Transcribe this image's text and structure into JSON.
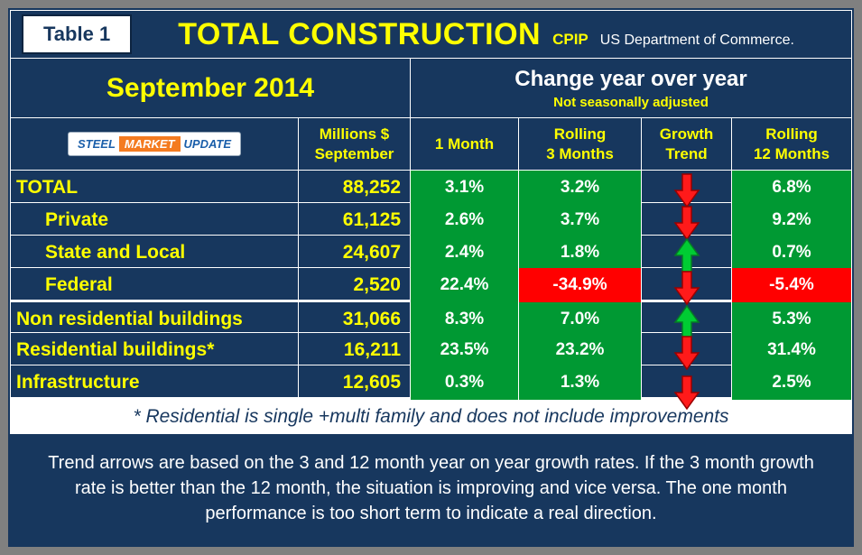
{
  "header": {
    "table_label": "Table 1",
    "title": "TOTAL CONSTRUCTION",
    "program": "CPIP",
    "source": "US Department of Commerce."
  },
  "period": {
    "month": "September 2014",
    "change_title": "Change year over year",
    "note": "Not seasonally adjusted"
  },
  "logo": {
    "steel": "STEEL",
    "market": "MARKET",
    "update": "UPDATE"
  },
  "columns": {
    "millions_line1": "Millions $",
    "millions_line2": "September",
    "one_month": "1 Month",
    "rolling3_line1": "Rolling",
    "rolling3_line2": "3 Months",
    "growth_line1": "Growth",
    "growth_line2": "Trend",
    "rolling12_line1": "Rolling",
    "rolling12_line2": "12 Months"
  },
  "rows": [
    {
      "label": "TOTAL",
      "indent": false,
      "thick_top": false,
      "millions": "88,252",
      "one_month": {
        "text": "3.1%",
        "bg": "green"
      },
      "rolling3": {
        "text": "3.2%",
        "bg": "green"
      },
      "trend": "down",
      "rolling12": {
        "text": "6.8%",
        "bg": "green"
      }
    },
    {
      "label": "Private",
      "indent": true,
      "thick_top": false,
      "millions": "61,125",
      "one_month": {
        "text": "2.6%",
        "bg": "green"
      },
      "rolling3": {
        "text": "3.7%",
        "bg": "green"
      },
      "trend": "down",
      "rolling12": {
        "text": "9.2%",
        "bg": "green"
      }
    },
    {
      "label": "State and Local",
      "indent": true,
      "thick_top": false,
      "millions": "24,607",
      "one_month": {
        "text": "2.4%",
        "bg": "green"
      },
      "rolling3": {
        "text": "1.8%",
        "bg": "green"
      },
      "trend": "up",
      "rolling12": {
        "text": "0.7%",
        "bg": "green"
      }
    },
    {
      "label": "Federal",
      "indent": true,
      "thick_top": false,
      "millions": "2,520",
      "one_month": {
        "text": "22.4%",
        "bg": "green"
      },
      "rolling3": {
        "text": "-34.9%",
        "bg": "red"
      },
      "trend": "down",
      "rolling12": {
        "text": "-5.4%",
        "bg": "red"
      }
    },
    {
      "label": "Non residential buildings",
      "indent": false,
      "thick_top": true,
      "millions": "31,066",
      "one_month": {
        "text": "8.3%",
        "bg": "green"
      },
      "rolling3": {
        "text": "7.0%",
        "bg": "green"
      },
      "trend": "up",
      "rolling12": {
        "text": "5.3%",
        "bg": "green"
      }
    },
    {
      "label": "Residential buildings*",
      "indent": false,
      "thick_top": false,
      "millions": "16,211",
      "one_month": {
        "text": "23.5%",
        "bg": "green"
      },
      "rolling3": {
        "text": "23.2%",
        "bg": "green"
      },
      "trend": "down",
      "rolling12": {
        "text": "31.4%",
        "bg": "green"
      }
    },
    {
      "label": "Infrastructure",
      "indent": false,
      "thick_top": false,
      "millions": "12,605",
      "one_month": {
        "text": "0.3%",
        "bg": "green"
      },
      "rolling3": {
        "text": "1.3%",
        "bg": "green"
      },
      "trend": "down",
      "rolling12": {
        "text": "2.5%",
        "bg": "green"
      }
    }
  ],
  "footnote": "* Residential is single +multi family and does not include improvements",
  "explanation": "Trend arrows are based on the 3 and 12 month year on year growth rates. If the 3 month growth rate is better than the 12 month, the situation is improving and vice versa. The one month performance is too short term to indicate a real direction.",
  "colors": {
    "navy": "#17375E",
    "frame_gray": "#808080",
    "yellow": "#FFFF00",
    "green_cell": "#009933",
    "red_cell": "#FF0000",
    "arrow_up": "#00CC33",
    "arrow_up_stroke": "#067A26",
    "arrow_down": "#FF1A1A",
    "arrow_down_stroke": "#990000",
    "grid_white": "#FFFFFF"
  },
  "chart_data": {
    "type": "table",
    "title": "TOTAL CONSTRUCTION (CPIP, US Department of Commerce)",
    "period": "September 2014",
    "note": "Not seasonally adjusted",
    "columns": [
      "Millions $ September",
      "1 Month",
      "Rolling 3 Months",
      "Growth Trend",
      "Rolling 12 Months"
    ],
    "rows": [
      {
        "category": "TOTAL",
        "millions_usd": 88252,
        "one_month_pct": 3.1,
        "rolling_3m_pct": 3.2,
        "growth_trend": "down",
        "rolling_12m_pct": 6.8
      },
      {
        "category": "Private",
        "millions_usd": 61125,
        "one_month_pct": 2.6,
        "rolling_3m_pct": 3.7,
        "growth_trend": "down",
        "rolling_12m_pct": 9.2
      },
      {
        "category": "State and Local",
        "millions_usd": 24607,
        "one_month_pct": 2.4,
        "rolling_3m_pct": 1.8,
        "growth_trend": "up",
        "rolling_12m_pct": 0.7
      },
      {
        "category": "Federal",
        "millions_usd": 2520,
        "one_month_pct": 22.4,
        "rolling_3m_pct": -34.9,
        "growth_trend": "down",
        "rolling_12m_pct": -5.4
      },
      {
        "category": "Non residential buildings",
        "millions_usd": 31066,
        "one_month_pct": 8.3,
        "rolling_3m_pct": 7.0,
        "growth_trend": "up",
        "rolling_12m_pct": 5.3
      },
      {
        "category": "Residential buildings*",
        "millions_usd": 16211,
        "one_month_pct": 23.5,
        "rolling_3m_pct": 23.2,
        "growth_trend": "down",
        "rolling_12m_pct": 31.4
      },
      {
        "category": "Infrastructure",
        "millions_usd": 12605,
        "one_month_pct": 0.3,
        "rolling_3m_pct": 1.3,
        "growth_trend": "down",
        "rolling_12m_pct": 2.5
      }
    ]
  }
}
